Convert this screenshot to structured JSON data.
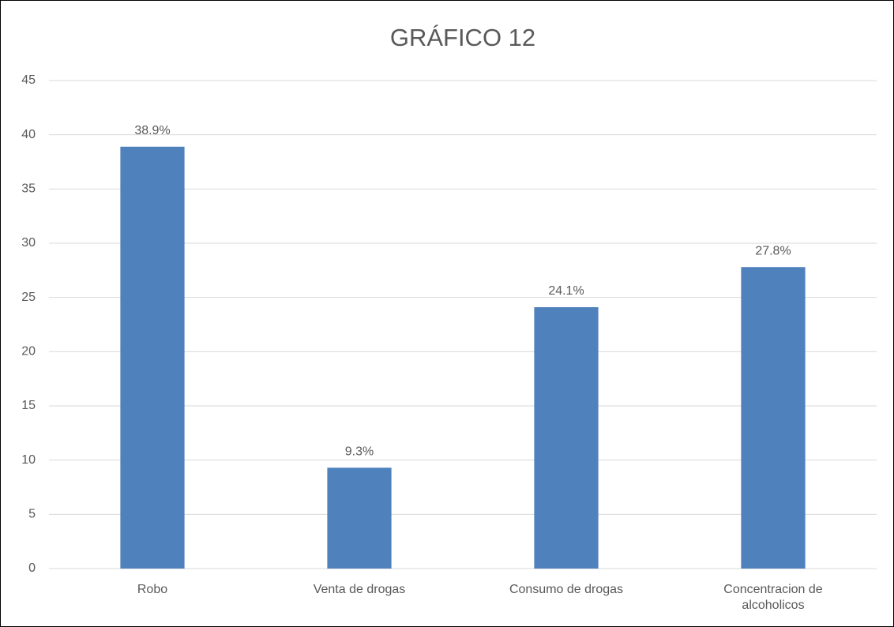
{
  "chart_data": {
    "type": "bar",
    "title": "GRÁFICO 12",
    "categories": [
      "Robo",
      "Venta de drogas",
      "Consumo de drogas",
      "Concentracion de alcoholicos"
    ],
    "values": [
      38.9,
      9.3,
      24.1,
      27.8
    ],
    "value_labels": [
      "38.9%",
      "9.3%",
      "24.1%",
      "27.8%"
    ],
    "color": "#4f81bd",
    "ylim": [
      0,
      45
    ],
    "yticks": [
      0,
      5,
      10,
      15,
      20,
      25,
      30,
      35,
      40,
      45
    ],
    "grid": true
  }
}
